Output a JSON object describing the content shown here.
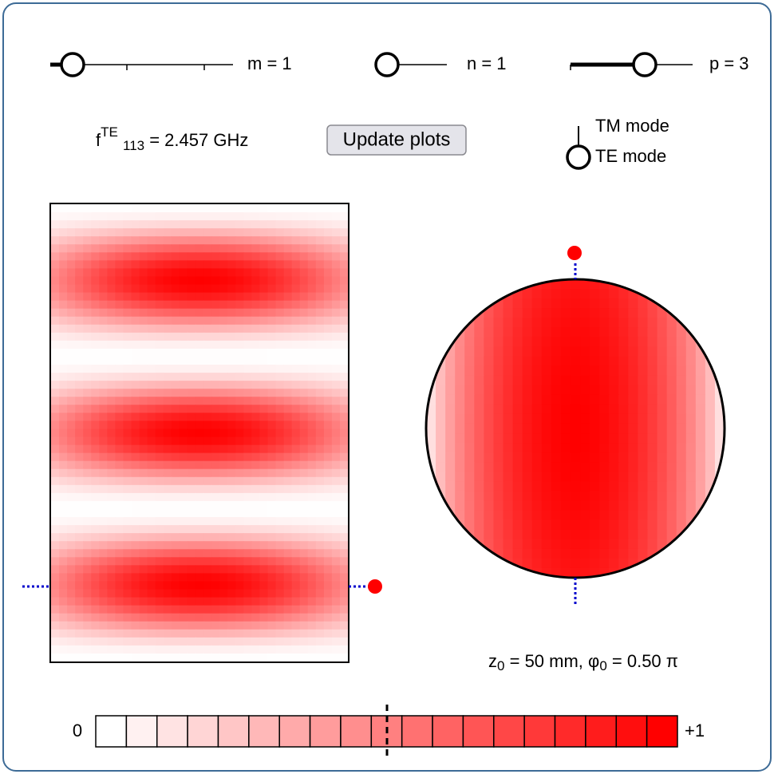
{
  "sliders": [
    {
      "label": "m = 1"
    },
    {
      "label": "n = 1"
    },
    {
      "label": "p = 3"
    }
  ],
  "frequency": {
    "symbol": "f",
    "superscript": "TE",
    "subscript": "113",
    "rest": " = 2.457 GHz"
  },
  "button": "Update plots",
  "modes": [
    "TM mode",
    "TE mode"
  ],
  "position": {
    "z": "z",
    "z_sub": "0",
    "z_rest": " = 50 mm, φ",
    "phi_sub": "0",
    "phi_rest": " = 0.50 π"
  },
  "colorbar": {
    "min_label": "0",
    "max_label": "+1"
  }
}
